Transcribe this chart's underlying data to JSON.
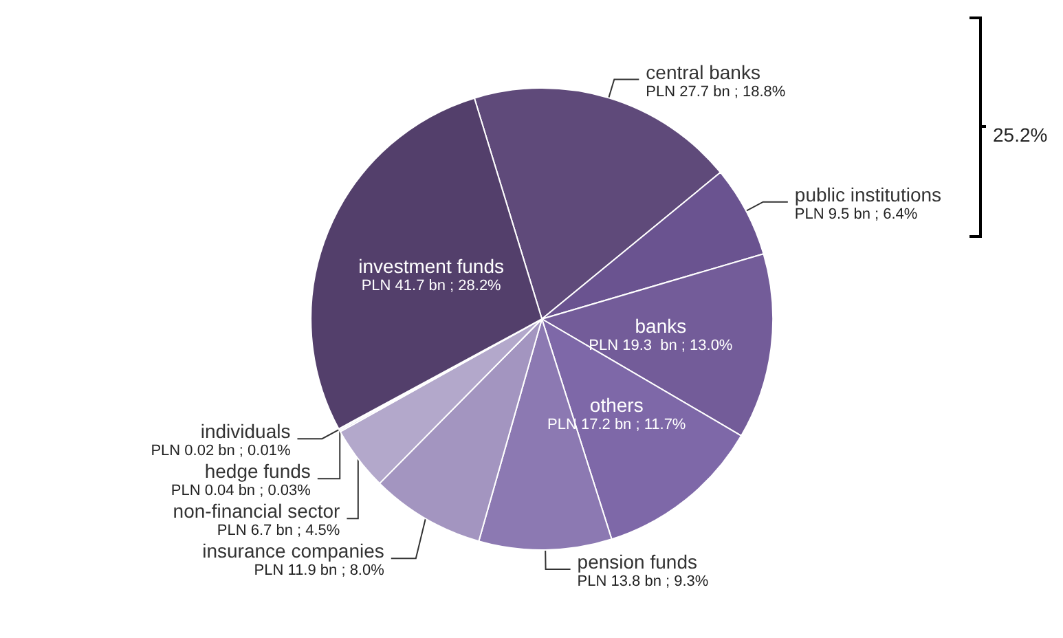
{
  "chart_data": {
    "type": "pie",
    "categories": [
      "central banks",
      "public institutions",
      "banks",
      "others",
      "pension funds",
      "insurance companies",
      "non-financial sector",
      "hedge funds",
      "individuals",
      "investment funds"
    ],
    "values": [
      18.8,
      6.4,
      13.0,
      11.7,
      9.3,
      8.0,
      4.5,
      0.03,
      0.01,
      28.2
    ],
    "value_labels": [
      "PLN 27.7 bn ; 18.8%",
      "PLN 9.5 bn ; 6.4%",
      "PLN 19.3  bn ; 13.0%",
      "PLN 17.2 bn ; 11.7%",
      "PLN 13.8 bn ; 9.3%",
      "PLN 11.9 bn ; 8.0%",
      "PLN 6.7 bn ; 4.5%",
      "PLN 0.04 bn ; 0.03%",
      "PLN 0.02 bn ; 0.01%",
      "PLN 41.7 bn ; 28.2%"
    ],
    "colors": [
      "#5f4a7a",
      "#6a5390",
      "#735c99",
      "#7e68a8",
      "#8c79b2",
      "#a395c0",
      "#b3a8cb",
      "#b9b0d0",
      "#c0b8d5",
      "#533f6b"
    ],
    "annotations": [
      "25.2%"
    ],
    "legend": false
  }
}
